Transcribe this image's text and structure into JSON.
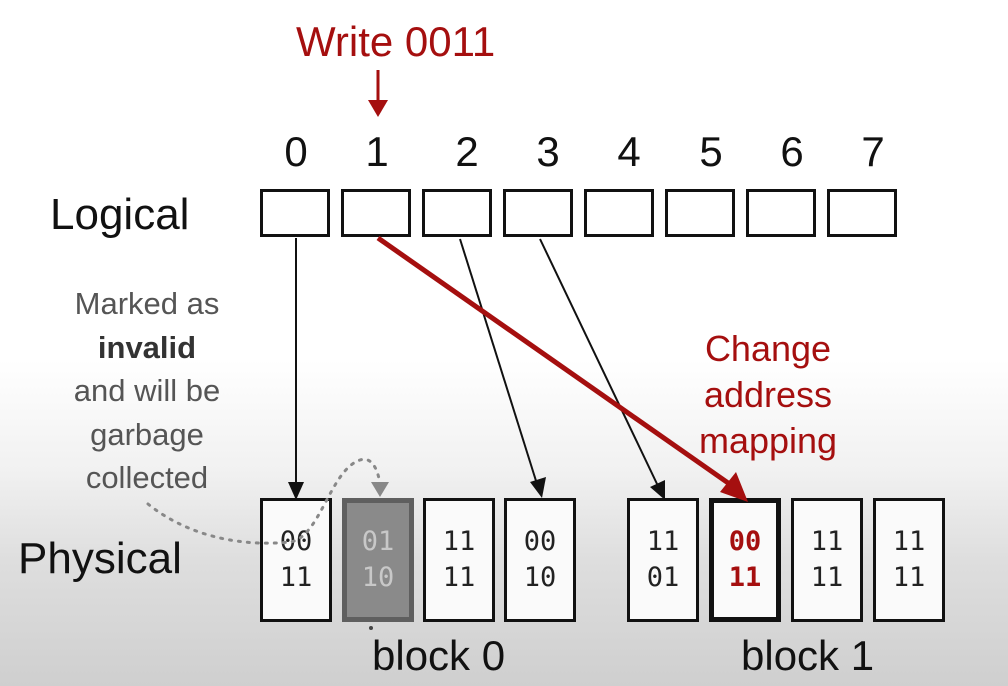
{
  "title": "Write 0011",
  "logical": {
    "label": "Logical",
    "indices": [
      "0",
      "1",
      "2",
      "3",
      "4",
      "5",
      "6",
      "7"
    ]
  },
  "physical": {
    "label": "Physical",
    "block0": {
      "label": "block 0",
      "pages": [
        {
          "line1": "00",
          "line2": "11",
          "state": "normal"
        },
        {
          "line1": "01",
          "line2": "10",
          "state": "invalid"
        },
        {
          "line1": "11",
          "line2": "11",
          "state": "normal"
        },
        {
          "line1": "00",
          "line2": "10",
          "state": "normal"
        }
      ]
    },
    "block1": {
      "label": "block 1",
      "pages": [
        {
          "line1": "11",
          "line2": "01",
          "state": "normal"
        },
        {
          "line1": "00",
          "line2": "11",
          "state": "updated"
        },
        {
          "line1": "11",
          "line2": "11",
          "state": "normal"
        },
        {
          "line1": "11",
          "line2": "11",
          "state": "normal"
        }
      ]
    }
  },
  "note": {
    "line1": "Marked as",
    "bold": "invalid",
    "line3": "and will be",
    "line4": "garbage",
    "line5": "collected"
  },
  "change": {
    "line1": "Change",
    "line2": "address",
    "line3": "mapping"
  },
  "colors": {
    "accent": "#a50f0f",
    "invalid_fill": "#8a8a8a",
    "text": "#111111"
  }
}
